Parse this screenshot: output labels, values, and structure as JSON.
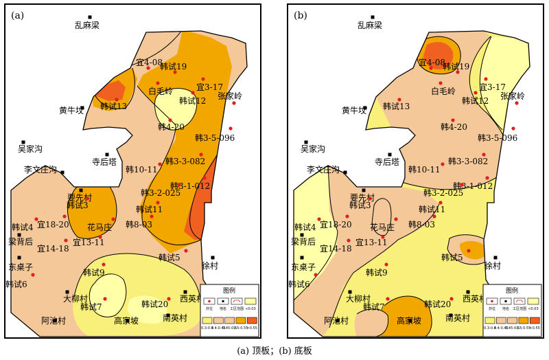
{
  "caption": "(a) 顶板；(b) 底板",
  "colors": {
    "c0": "#ffffa8",
    "c1": "#f8f07a",
    "c2": "#f5c89a",
    "c3": "#f2a600",
    "c4": "#f06020",
    "well": "#e02020",
    "outline": "#000000"
  },
  "panels": [
    {
      "id": "a",
      "label": "(a)",
      "wells": [
        {
          "name": "宜4-08"
        },
        {
          "name": "韩试19"
        },
        {
          "name": "白毛岭"
        },
        {
          "name": "宜3-17"
        },
        {
          "name": "韩试12"
        },
        {
          "name": "张家岭"
        },
        {
          "name": "韩试13"
        },
        {
          "name": "韩4-20"
        },
        {
          "name": "韩3-5-096"
        },
        {
          "name": "韩3-3-082"
        },
        {
          "name": "韩10-11"
        },
        {
          "name": "韩3-1-012"
        },
        {
          "name": "韩3-2-025"
        },
        {
          "name": "韩试3"
        },
        {
          "name": "韩试11"
        },
        {
          "name": "宜18-20"
        },
        {
          "name": "韩试4"
        },
        {
          "name": "花马庄"
        },
        {
          "name": "韩8-03"
        },
        {
          "name": "宜13-11"
        },
        {
          "name": "宜14-18"
        },
        {
          "name": "韩试5"
        },
        {
          "name": "韩试9"
        },
        {
          "name": "韩试6"
        },
        {
          "name": "韩试7"
        },
        {
          "name": "韩试20"
        }
      ],
      "places": [
        {
          "name": "乱麻梁"
        },
        {
          "name": "黄牛坟"
        },
        {
          "name": "吴家沟"
        },
        {
          "name": "寺后塔"
        },
        {
          "name": "李文庄沟"
        },
        {
          "name": "要先村"
        },
        {
          "name": "梁背后"
        },
        {
          "name": "东桌子"
        },
        {
          "name": "徐村"
        },
        {
          "name": "大柳村"
        },
        {
          "name": "西英村"
        },
        {
          "name": "南英村"
        },
        {
          "name": "阿池村"
        },
        {
          "name": "高家坡"
        }
      ]
    },
    {
      "id": "b",
      "label": "(b)",
      "wells": [
        {
          "name": "宜4-08"
        },
        {
          "name": "韩试19"
        },
        {
          "name": "白毛岭"
        },
        {
          "name": "宜3-17"
        },
        {
          "name": "韩试12"
        },
        {
          "name": "张家岭"
        },
        {
          "name": "韩试13"
        },
        {
          "name": "韩4-20"
        },
        {
          "name": "韩3-5-096"
        },
        {
          "name": "韩3-3-082"
        },
        {
          "name": "韩10-11"
        },
        {
          "name": "韩3-1-012"
        },
        {
          "name": "韩3-2-025"
        },
        {
          "name": "韩试3"
        },
        {
          "name": "韩试11"
        },
        {
          "name": "宜18-20"
        },
        {
          "name": "韩试4"
        },
        {
          "name": "花马庄"
        },
        {
          "name": "韩8-03"
        },
        {
          "name": "宜13-11"
        },
        {
          "name": "宜14-18"
        },
        {
          "name": "韩试5"
        },
        {
          "name": "韩试9"
        },
        {
          "name": "韩试6"
        },
        {
          "name": "韩试7"
        },
        {
          "name": "韩试20"
        }
      ],
      "places": [
        {
          "name": "乱麻梁"
        },
        {
          "name": "黄牛坟"
        },
        {
          "name": "吴家沟"
        },
        {
          "name": "寺后塔"
        },
        {
          "name": "李文庄沟"
        },
        {
          "name": "要先村"
        },
        {
          "name": "梁背后"
        },
        {
          "name": "东桌子"
        },
        {
          "name": "徐村"
        },
        {
          "name": "大柳村"
        },
        {
          "name": "西英村"
        },
        {
          "name": "南英村"
        },
        {
          "name": "阿池村"
        },
        {
          "name": "高家坡"
        }
      ]
    }
  ],
  "legend": {
    "title": "图例",
    "symbols": [
      "井位",
      "地名",
      "工区范围",
      "<0.03"
    ],
    "ranges": [
      "0.3-0.4",
      "0.4-0.45",
      "0.45-0.5",
      "0.5-0.55",
      ">0.55"
    ]
  }
}
